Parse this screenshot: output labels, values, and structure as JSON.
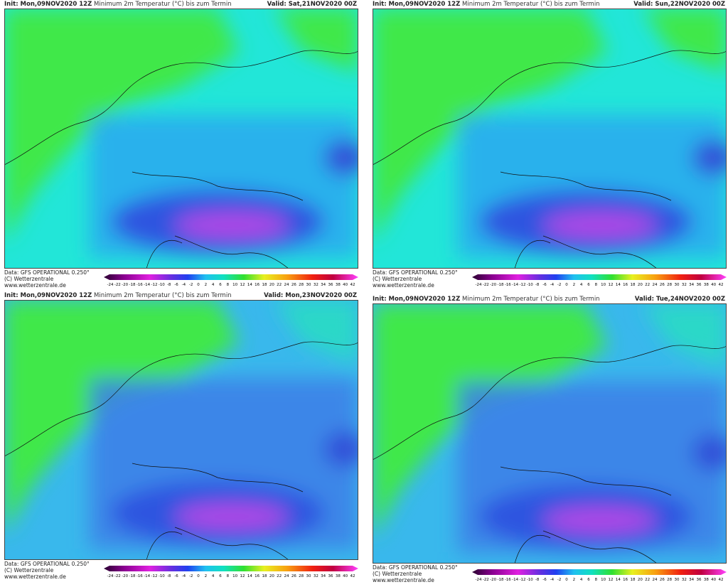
{
  "panels": [
    {
      "init": "Init: Mon,09NOV2020 12Z",
      "title": "Minimum 2m Temperatur (°C) bis zum Termin",
      "valid": "Valid: Sat,21NOV2020 00Z",
      "source": "Data: GFS OPERATIONAL 0.250°",
      "copyright": "(C) Wetterzentrale",
      "url": "www.wetterzentrale.de"
    },
    {
      "init": "Init: Mon,09NOV2020 12Z",
      "title": "Minimum 2m Temperatur (°C) bis zum Termin",
      "valid": "Valid: Sun,22NOV2020 00Z",
      "source": "Data: GFS OPERATIONAL 0.250°",
      "copyright": "(C) Wetterzentrale",
      "url": "www.wetterzentrale.de"
    },
    {
      "init": "Init: Mon,09NOV2020 12Z",
      "title": "Minimum 2m Temperatur (°C) bis zum Termin",
      "valid": "Valid: Mon,23NOV2020 00Z",
      "source": "Data: GFS OPERATIONAL 0.250°",
      "copyright": "(C) Wetterzentrale",
      "url": "www.wetterzentrale.de"
    },
    {
      "init": "Init: Mon,09NOV2020 12Z",
      "title": "Minimum 2m Temperatur (°C) bis zum Termin",
      "valid": "Valid: Tue,24NOV2020 00Z",
      "source": "Data: GFS OPERATIONAL 0.250°",
      "copyright": "(C) Wetterzentrale",
      "url": "www.wetterzentrale.de"
    }
  ],
  "colorbar_labels": [
    -24,
    -22,
    -20,
    -18,
    -16,
    -14,
    -12,
    -10,
    -8,
    -6,
    -4,
    -2,
    0,
    2,
    4,
    6,
    8,
    10,
    12,
    14,
    16,
    18,
    20,
    22,
    24,
    26,
    28,
    30,
    32,
    34,
    36,
    38,
    40,
    42
  ]
}
